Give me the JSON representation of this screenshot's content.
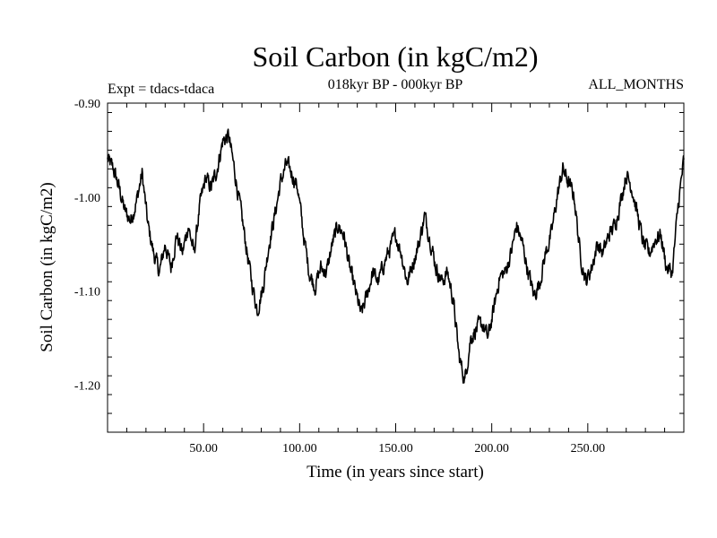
{
  "chart_data": {
    "type": "line",
    "title": "Soil Carbon (in kgC/m2)",
    "period": "018kyr BP - 000kyr BP",
    "experiment": "Expt = tdacs-tdaca",
    "months": "ALL_MONTHS",
    "xlabel": "Time (in years since start)",
    "ylabel": "Soil Carbon (in kgC/m2)",
    "xlim": [
      0,
      300
    ],
    "ylim": [
      -1.25,
      -0.9
    ],
    "x_ticks": [
      50,
      100,
      150,
      200,
      250
    ],
    "x_tick_labels": [
      "50.00",
      "100.00",
      "150.00",
      "200.00",
      "250.00"
    ],
    "y_ticks": [
      -0.9,
      -1.0,
      -1.1,
      -1.2
    ],
    "y_tick_labels": [
      "-0.90",
      "-1.00",
      "-1.10",
      "-1.20"
    ],
    "series": [
      {
        "name": "Soil Carbon",
        "x": [
          0,
          3,
          6,
          9,
          12,
          15,
          18,
          21,
          24,
          27,
          30,
          33,
          36,
          39,
          42,
          45,
          48,
          51,
          54,
          57,
          60,
          63,
          66,
          69,
          72,
          75,
          78,
          81,
          84,
          87,
          90,
          93,
          96,
          99,
          102,
          105,
          108,
          111,
          114,
          117,
          120,
          123,
          126,
          129,
          132,
          135,
          138,
          141,
          144,
          147,
          150,
          153,
          156,
          159,
          162,
          165,
          168,
          171,
          174,
          177,
          180,
          183,
          186,
          189,
          192,
          195,
          198,
          201,
          204,
          207,
          210,
          213,
          216,
          219,
          222,
          225,
          228,
          231,
          234,
          237,
          240,
          243,
          246,
          249,
          252,
          255,
          258,
          261,
          264,
          267,
          270,
          273,
          276,
          279,
          282,
          285,
          288,
          291,
          294,
          297,
          300
        ],
        "values": [
          -0.96,
          -0.97,
          -0.99,
          -1.015,
          -1.025,
          -1.005,
          -0.975,
          -1.03,
          -1.06,
          -1.08,
          -1.05,
          -1.075,
          -1.04,
          -1.06,
          -1.03,
          -1.06,
          -1.01,
          -0.98,
          -0.99,
          -0.97,
          -0.94,
          -0.935,
          -0.97,
          -1.01,
          -1.05,
          -1.09,
          -1.12,
          -1.095,
          -1.05,
          -1.02,
          -0.985,
          -0.965,
          -0.975,
          -0.99,
          -1.04,
          -1.08,
          -1.095,
          -1.075,
          -1.08,
          -1.05,
          -1.03,
          -1.04,
          -1.075,
          -1.1,
          -1.125,
          -1.105,
          -1.08,
          -1.09,
          -1.07,
          -1.055,
          -1.04,
          -1.06,
          -1.09,
          -1.07,
          -1.05,
          -1.02,
          -1.045,
          -1.075,
          -1.09,
          -1.08,
          -1.11,
          -1.17,
          -1.195,
          -1.15,
          -1.14,
          -1.135,
          -1.15,
          -1.12,
          -1.085,
          -1.08,
          -1.06,
          -1.03,
          -1.05,
          -1.08,
          -1.105,
          -1.09,
          -1.06,
          -1.04,
          -1.0,
          -0.97,
          -0.985,
          -1.0,
          -1.06,
          -1.09,
          -1.075,
          -1.05,
          -1.06,
          -1.04,
          -1.03,
          -1.005,
          -0.975,
          -0.99,
          -1.02,
          -1.05,
          -1.06,
          -1.045,
          -1.04,
          -1.075,
          -1.08,
          -1.01,
          -0.96
        ]
      }
    ]
  }
}
